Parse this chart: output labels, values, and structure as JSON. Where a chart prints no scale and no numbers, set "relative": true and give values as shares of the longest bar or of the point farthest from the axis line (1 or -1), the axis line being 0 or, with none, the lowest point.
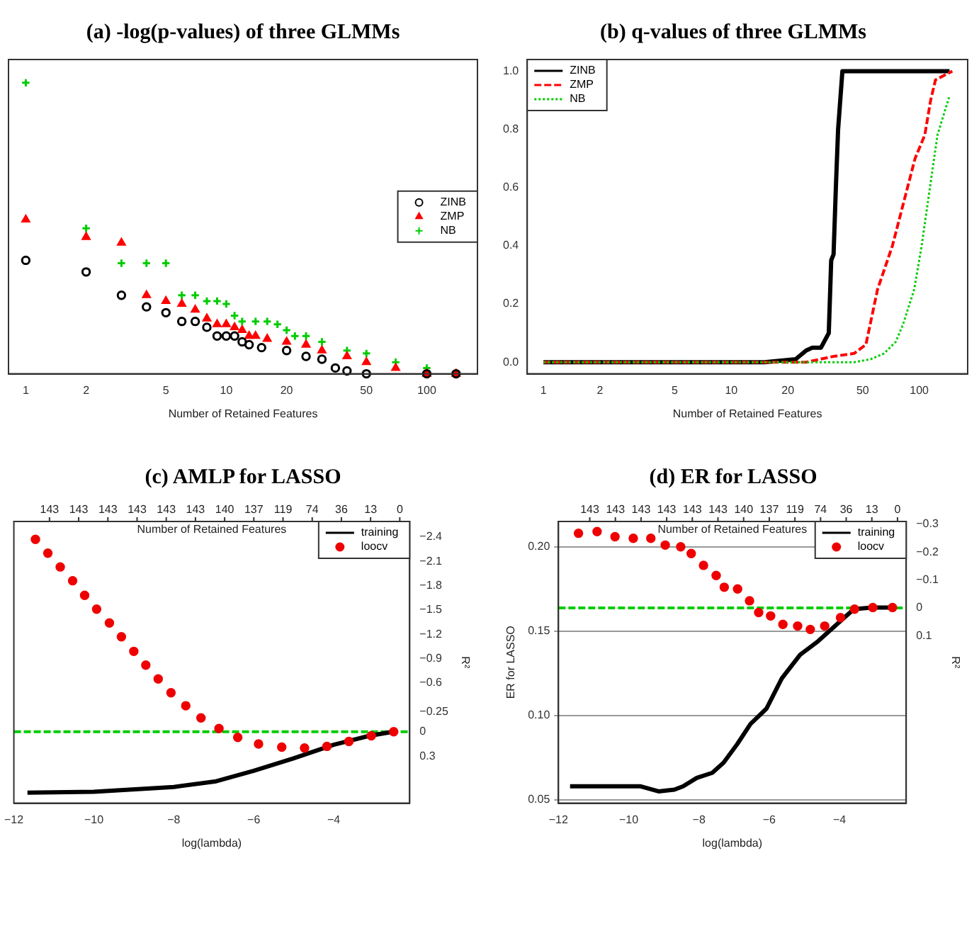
{
  "chart_data": [
    {
      "type": "scatter",
      "title": "(a) -log(p-values) of three GLMMs",
      "xlabel": "Number of Retained Features",
      "relative": true,
      "log": "x",
      "xlim": [
        0.82,
        179
      ],
      "xticks": [
        1,
        2,
        5,
        10,
        20,
        50,
        100
      ],
      "tick_labels": "x",
      "grid": false,
      "legend": "right",
      "series": [
        {
          "name": "ZINB",
          "color": "#000000",
          "marker": "circle",
          "x": [
            1,
            2,
            3,
            4,
            5,
            6,
            7,
            8,
            9,
            10,
            11,
            12,
            13,
            15,
            20,
            25,
            30,
            35,
            40,
            50,
            100,
            140
          ],
          "values": [
            0.39,
            0.35,
            0.27,
            0.23,
            0.21,
            0.18,
            0.18,
            0.16,
            0.13,
            0.13,
            0.13,
            0.11,
            0.1,
            0.09,
            0.08,
            0.06,
            0.05,
            0.02,
            0.01,
            0,
            0,
            0
          ]
        },
        {
          "name": "ZMP",
          "color": "#ff0000",
          "marker": "triangle",
          "x": [
            1,
            2,
            3,
            4,
            5,
            6,
            7,
            8,
            9,
            10,
            11,
            12,
            13,
            14,
            16,
            20,
            25,
            30,
            40,
            50,
            70,
            100,
            140
          ],
          "values": [
            0.53,
            0.47,
            0.45,
            0.27,
            0.25,
            0.24,
            0.22,
            0.19,
            0.17,
            0.17,
            0.16,
            0.15,
            0.13,
            0.13,
            0.12,
            0.11,
            0.1,
            0.08,
            0.06,
            0.04,
            0.02,
            0,
            0
          ]
        },
        {
          "name": "NB",
          "color": "#00cc00",
          "marker": "cross",
          "x": [
            1,
            2,
            3,
            4,
            5,
            6,
            7,
            8,
            9,
            10,
            11,
            12,
            14,
            16,
            18,
            20,
            22,
            25,
            30,
            40,
            50,
            70,
            100
          ],
          "values": [
            1,
            0.5,
            0.38,
            0.38,
            0.38,
            0.27,
            0.27,
            0.25,
            0.25,
            0.24,
            0.2,
            0.18,
            0.18,
            0.18,
            0.17,
            0.15,
            0.13,
            0.13,
            0.11,
            0.08,
            0.07,
            0.04,
            0.02
          ]
        }
      ]
    },
    {
      "type": "line",
      "title": "(b) q-values of three GLMMs",
      "xlabel": "Number of Retained Features",
      "log": "x",
      "xlim": [
        0.82,
        181
      ],
      "xticks": [
        1,
        2,
        5,
        10,
        20,
        50,
        100
      ],
      "ylim": [
        -0.04,
        1.04
      ],
      "yticks": [
        {
          "value": 0,
          "label": "0.0"
        },
        0.2,
        0.4,
        0.6,
        0.8,
        {
          "value": 1,
          "label": "1.0"
        }
      ],
      "grid": false,
      "legend": "top left",
      "series": [
        {
          "name": "ZINB",
          "color": "#000000",
          "line_style": "solid",
          "x": [
            1,
            15,
            22,
            25,
            27,
            30,
            33,
            34,
            35,
            36,
            37,
            39,
            145
          ],
          "values": [
            0,
            0,
            0.01,
            0.04,
            0.05,
            0.05,
            0.1,
            0.35,
            0.37,
            0.6,
            0.8,
            1,
            1
          ]
        },
        {
          "name": "ZMP",
          "color": "#ff0000",
          "line_style": "dashed",
          "x": [
            1,
            25,
            35,
            45,
            52,
            60,
            72,
            85,
            95,
            107,
            115,
            122,
            150
          ],
          "values": [
            0,
            0,
            0.02,
            0.03,
            0.06,
            0.25,
            0.4,
            0.58,
            0.7,
            0.78,
            0.9,
            0.97,
            1
          ]
        },
        {
          "name": "NB",
          "color": "#00cc00",
          "line_style": "dotted",
          "x": [
            1,
            45,
            55,
            65,
            75,
            82,
            94,
            103,
            114,
            125,
            144
          ],
          "values": [
            0,
            0,
            0.01,
            0.03,
            0.07,
            0.13,
            0.25,
            0.4,
            0.6,
            0.78,
            0.91
          ]
        }
      ]
    },
    {
      "type": "line",
      "title": "(c) AMLP for LASSO",
      "xlabel": "log(lambda)",
      "y2label": "R²",
      "xlim": [
        -12,
        -2.1
      ],
      "xticks": [
        {
          "value": -12,
          "label": "−12"
        },
        {
          "value": -10,
          "label": "−10"
        },
        {
          "value": -8,
          "label": "−8"
        },
        {
          "value": -6,
          "label": "−6"
        },
        {
          "value": -4,
          "label": "−4"
        }
      ],
      "y2lim": [
        0.88,
        -2.59
      ],
      "y2ticks": [
        {
          "value": -2.4,
          "label": "−2.4"
        },
        {
          "value": -2.1,
          "label": "−2.1"
        },
        {
          "value": -1.8,
          "label": "−1.8"
        },
        {
          "value": -1.5,
          "label": "−1.5"
        },
        {
          "value": -1.2,
          "label": "−1.2"
        },
        {
          "value": -0.9,
          "label": "−0.9"
        },
        {
          "value": -0.6,
          "label": "−0.6"
        },
        {
          "value": -0.25,
          "label": "−0.25"
        },
        0,
        0.3
      ],
      "grid": false,
      "legend": "top right",
      "ref_lines": [
        {
          "axis": "y2",
          "value": 0,
          "color": "#00cc00",
          "line_style": "dashed"
        }
      ],
      "annotations": [
        "Number of Retained Features",
        "143",
        "143",
        "143",
        "143",
        "143",
        "143",
        "140",
        "137",
        "119",
        "74",
        "36",
        "13",
        "0"
      ],
      "series": [
        {
          "name": "training",
          "color": "#000000",
          "axis": "y2",
          "line_style": "solid",
          "x": [
            -11.66,
            -10,
            -8,
            -6.94,
            -6,
            -5.02,
            -4,
            -3.11,
            -2.51
          ],
          "values": [
            0.75,
            0.74,
            0.68,
            0.61,
            0.48,
            0.33,
            0.16,
            0.05,
            0
          ]
        },
        {
          "name": "loocv",
          "type": "scatter",
          "color": "#ee0000",
          "axis": "y2",
          "marker": "circle",
          "x": [
            -11.46,
            -11.15,
            -10.84,
            -10.53,
            -10.23,
            -9.93,
            -9.61,
            -9.31,
            -9,
            -8.7,
            -8.39,
            -8.07,
            -7.7,
            -7.32,
            -6.87,
            -6.4,
            -5.88,
            -5.3,
            -4.73,
            -4.17,
            -3.62,
            -3.06,
            -2.5
          ],
          "values": [
            -2.37,
            -2.2,
            -2.03,
            -1.86,
            -1.68,
            -1.51,
            -1.34,
            -1.17,
            -0.99,
            -0.82,
            -0.65,
            -0.48,
            -0.32,
            -0.17,
            -0.04,
            0.07,
            0.15,
            0.19,
            0.2,
            0.18,
            0.12,
            0.05,
            0
          ]
        }
      ]
    },
    {
      "type": "line",
      "title": "(d) ER for LASSO",
      "xlabel": "log(lambda)",
      "ylabel": "ER for LASSO",
      "y2label": "R²",
      "xlim": [
        -12,
        -2.1
      ],
      "xticks": [
        {
          "value": -12,
          "label": "−12"
        },
        {
          "value": -10,
          "label": "−10"
        },
        {
          "value": -8,
          "label": "−8"
        },
        {
          "value": -6,
          "label": "−6"
        },
        {
          "value": -4,
          "label": "−4"
        }
      ],
      "ylim": [
        0.048,
        0.215
      ],
      "yticks": [
        0.05,
        {
          "value": 0.1,
          "label": "0.10"
        },
        0.15,
        {
          "value": 0.2,
          "label": "0.20"
        }
      ],
      "y2lim": [
        0.7,
        -0.31
      ],
      "y2ticks": [
        {
          "value": -0.3,
          "label": "−0.3"
        },
        {
          "value": -0.2,
          "label": "−0.2"
        },
        {
          "value": -0.1,
          "label": "−0.1"
        },
        0,
        0.1
      ],
      "grid": "y",
      "legend": "top right",
      "ref_lines": [
        {
          "axis": "y2",
          "value": 0,
          "color": "#00cc00",
          "line_style": "dashed"
        }
      ],
      "annotations": [
        "Number of Retained Features",
        "143",
        "143",
        "143",
        "143",
        "143",
        "143",
        "140",
        "137",
        "119",
        "74",
        "36",
        "13",
        "0"
      ],
      "series": [
        {
          "name": "training",
          "color": "#000000",
          "line_style": "solid",
          "x": [
            -11.67,
            -9.66,
            -9.15,
            -8.7,
            -8.45,
            -8.06,
            -7.62,
            -7.3,
            -6.91,
            -6.53,
            -6.08,
            -5.64,
            -5.12,
            -4.61,
            -3.97,
            -3.59,
            -3.08,
            -2.49
          ],
          "values": [
            0.058,
            0.058,
            0.055,
            0.056,
            0.058,
            0.063,
            0.066,
            0.072,
            0.083,
            0.095,
            0.104,
            0.122,
            0.136,
            0.144,
            0.156,
            0.163,
            0.164,
            0.164
          ]
        },
        {
          "name": "loocv",
          "type": "scatter",
          "color": "#ee0000",
          "marker": "circle",
          "x": [
            -11.43,
            -10.9,
            -10.39,
            -9.87,
            -9.37,
            -8.96,
            -8.52,
            -8.22,
            -7.87,
            -7.51,
            -7.28,
            -6.9,
            -6.56,
            -6.3,
            -5.96,
            -5.61,
            -5.19,
            -4.83,
            -4.42,
            -3.97,
            -3.57,
            -3.05,
            -2.49
          ],
          "values": [
            0.208,
            0.209,
            0.206,
            0.205,
            0.205,
            0.201,
            0.2,
            0.196,
            0.189,
            0.183,
            0.176,
            0.175,
            0.168,
            0.161,
            0.159,
            0.154,
            0.153,
            0.151,
            0.153,
            0.158,
            0.163,
            0.164,
            0.164
          ]
        }
      ]
    }
  ]
}
